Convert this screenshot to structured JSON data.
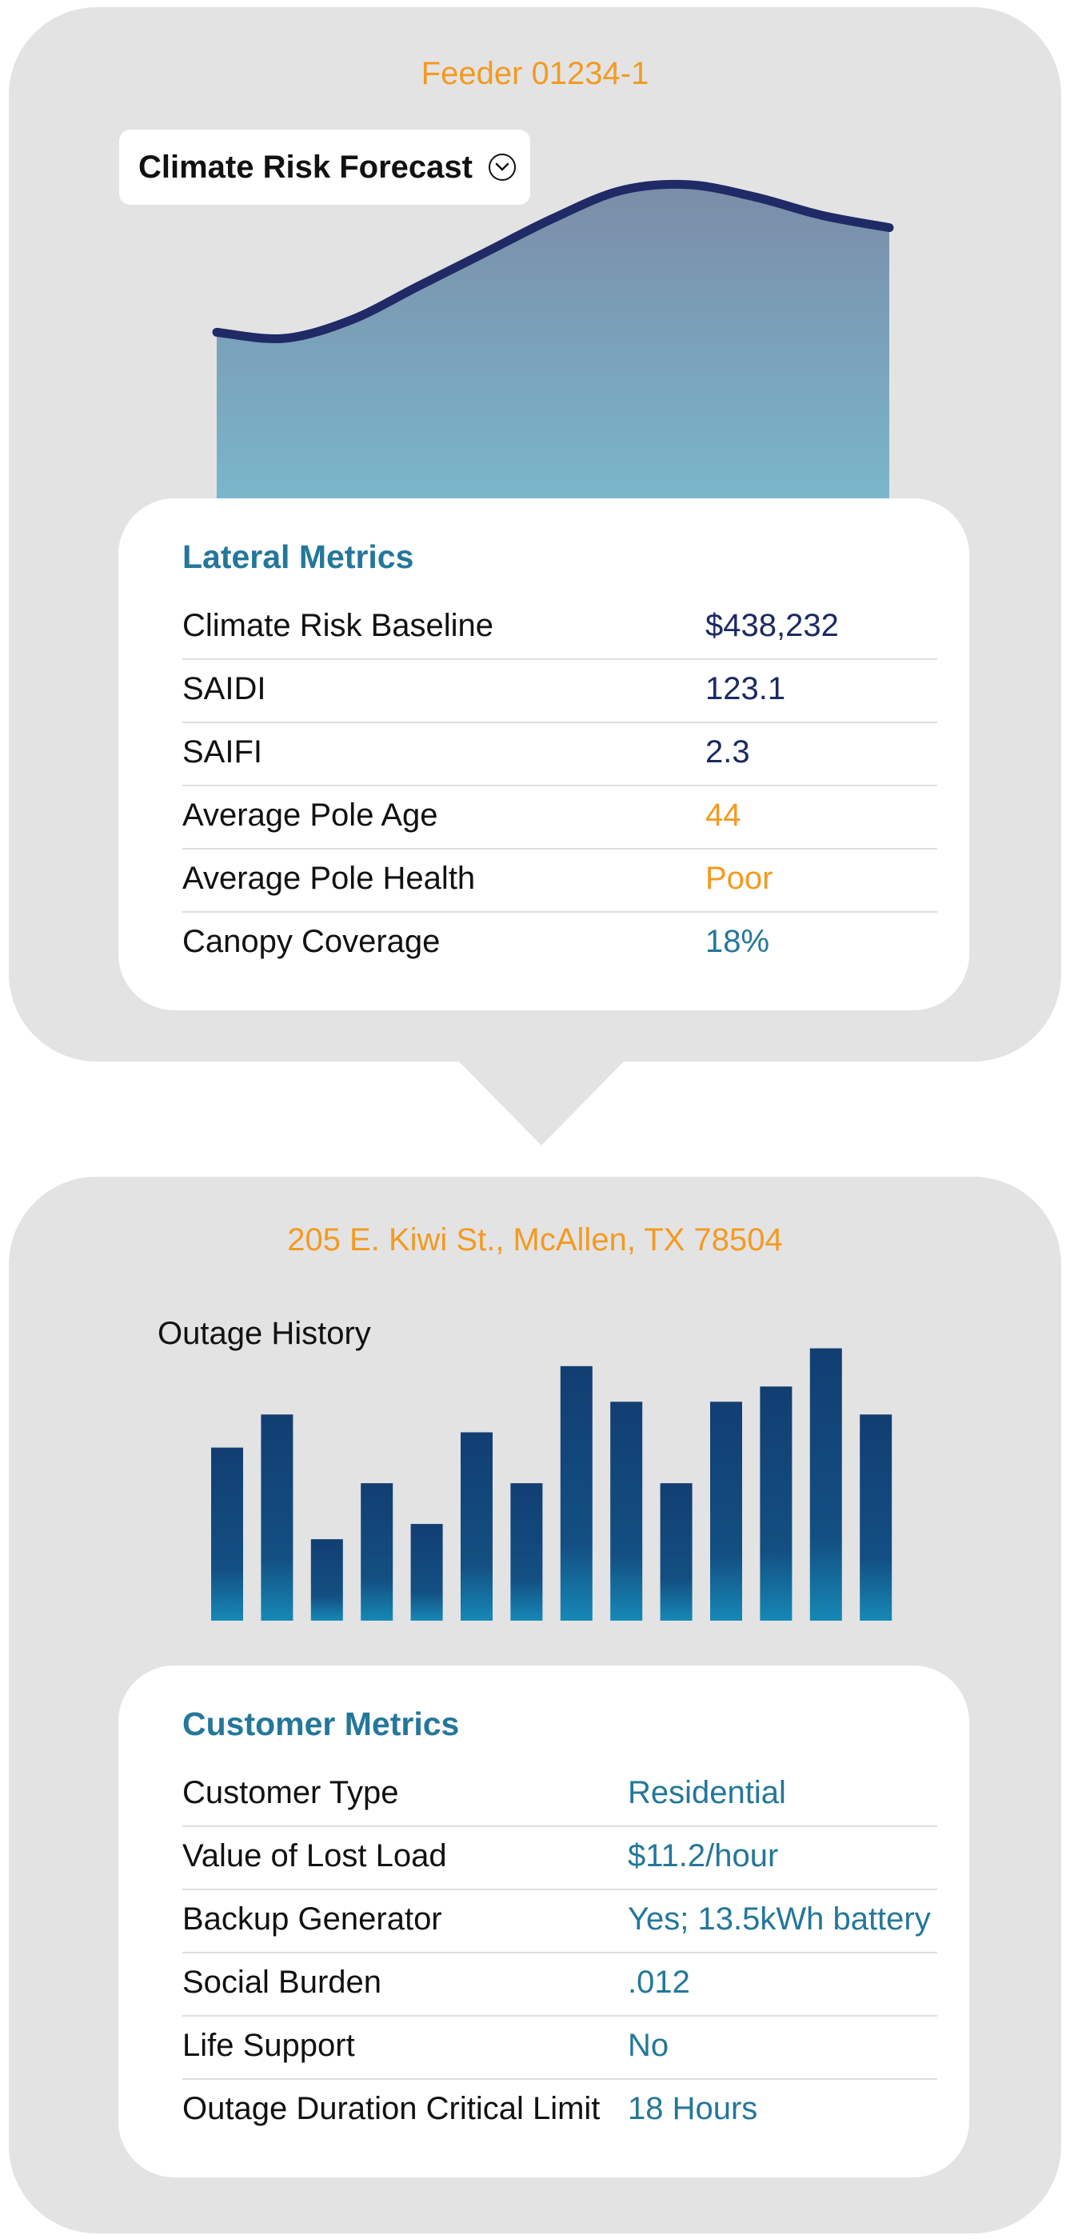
{
  "feeder": {
    "title": "Feeder 01234-1",
    "dropdown_label": "Climate Risk Forecast",
    "dropdown_icon": "chevron-down-circle-icon"
  },
  "lateral_metrics": {
    "title": "Lateral Metrics",
    "rows": [
      {
        "label": "Climate Risk Baseline",
        "value": "$438,232",
        "color": "#1b2a63"
      },
      {
        "label": "SAIDI",
        "value": "123.1",
        "color": "#1b2a63"
      },
      {
        "label": "SAIFI",
        "value": "2.3",
        "color": "#1b2a63"
      },
      {
        "label": "Average Pole Age",
        "value": "44",
        "color": "#f39a21"
      },
      {
        "label": "Average Pole Health",
        "value": "Poor",
        "color": "#f39a21"
      },
      {
        "label": "Canopy Coverage",
        "value": "18%",
        "color": "#24779a"
      }
    ]
  },
  "address": {
    "title": "205 E. Kiwi St., McAllen, TX 78504",
    "chart_title": "Outage History"
  },
  "customer_metrics": {
    "title": "Customer Metrics",
    "rows": [
      {
        "label": "Customer Type",
        "value": "Residential"
      },
      {
        "label": "Value of Lost Load",
        "value": "$11.2/hour"
      },
      {
        "label": "Backup Generator",
        "value": "Yes; 13.5kWh battery"
      },
      {
        "label": "Social Burden",
        "value": ".012"
      },
      {
        "label": "Life Support",
        "value": "No"
      },
      {
        "label": "Outage Duration Critical Limit",
        "value": "18 Hours"
      }
    ]
  },
  "chart_data": [
    {
      "type": "area",
      "title": "Climate Risk Forecast",
      "x": [
        0,
        1,
        2,
        3,
        4,
        5,
        6,
        7,
        8,
        9,
        10
      ],
      "values": [
        0.54,
        0.52,
        0.58,
        0.69,
        0.8,
        0.91,
        1.0,
        1.02,
        0.98,
        0.92,
        0.88
      ],
      "ylim": [
        0,
        1.1
      ],
      "grid": false,
      "colors": {
        "line": "#1f2a66",
        "fill_top": "#7b8ca8",
        "fill_bottom": "#7ab6cb"
      }
    },
    {
      "type": "bar",
      "title": "Outage History",
      "categories": [
        "1",
        "2",
        "3",
        "4",
        "5",
        "6",
        "7",
        "8",
        "9",
        "10",
        "11",
        "12",
        "13",
        "14"
      ],
      "values": [
        6.8,
        8.1,
        3.2,
        5.4,
        3.8,
        7.4,
        5.4,
        10.0,
        8.6,
        5.4,
        8.6,
        9.2,
        10.7,
        8.1
      ],
      "ylim": [
        0,
        11
      ],
      "grid": false,
      "colors": {
        "bar_top": "#123e72",
        "bar_bottom": "#1688b6"
      }
    }
  ]
}
